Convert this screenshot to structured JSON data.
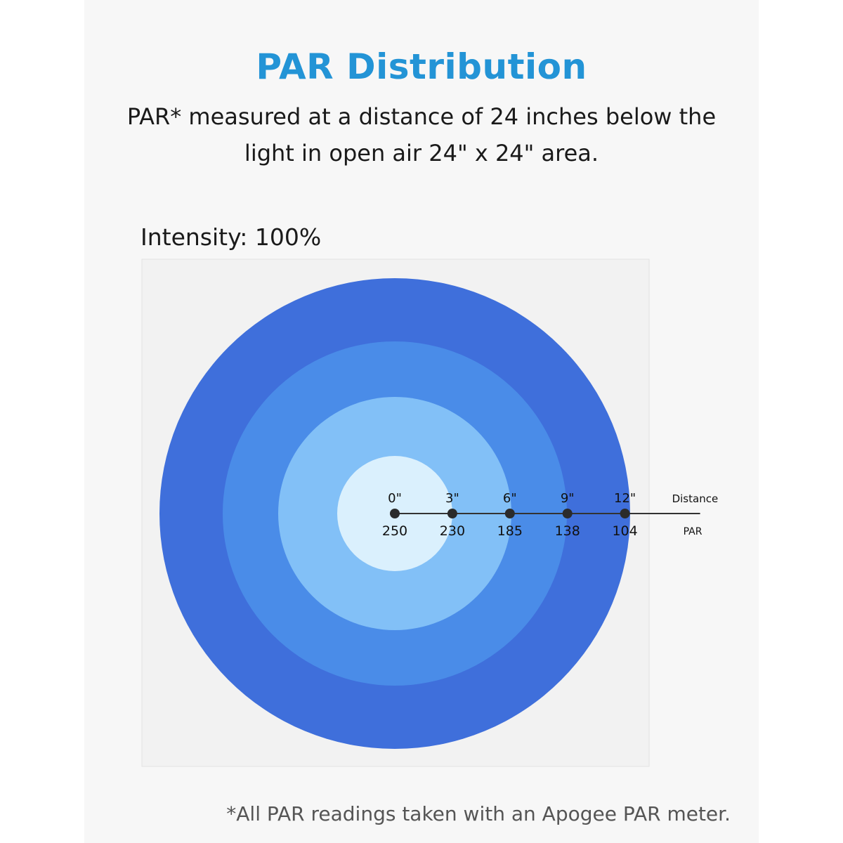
{
  "header": {
    "title": "PAR Distribution",
    "subtitle_line1": "PAR* measured at a distance of 24 inches below the",
    "subtitle_line2": "light in open air 24\" x 24\" area."
  },
  "intensity_label": "Intensity: 100%",
  "footnote": "*All PAR readings taken with an Apogee PAR meter.",
  "chart_data": {
    "type": "radial",
    "distance_label": "Distance",
    "par_label": "PAR",
    "distance_unit": "\"",
    "points": [
      {
        "distance": 0,
        "distance_text": "0\"",
        "par": 250
      },
      {
        "distance": 3,
        "distance_text": "3\"",
        "par": 230
      },
      {
        "distance": 6,
        "distance_text": "6\"",
        "par": 185
      },
      {
        "distance": 9,
        "distance_text": "9\"",
        "par": 138
      },
      {
        "distance": 12,
        "distance_text": "12\"",
        "par": 104
      }
    ],
    "ring_colors": [
      "#3f6fdb",
      "#4a8ce8",
      "#82c0f7",
      "#daf0fd"
    ],
    "area_color": "#f2f2f2",
    "axis_color": "#333333"
  }
}
